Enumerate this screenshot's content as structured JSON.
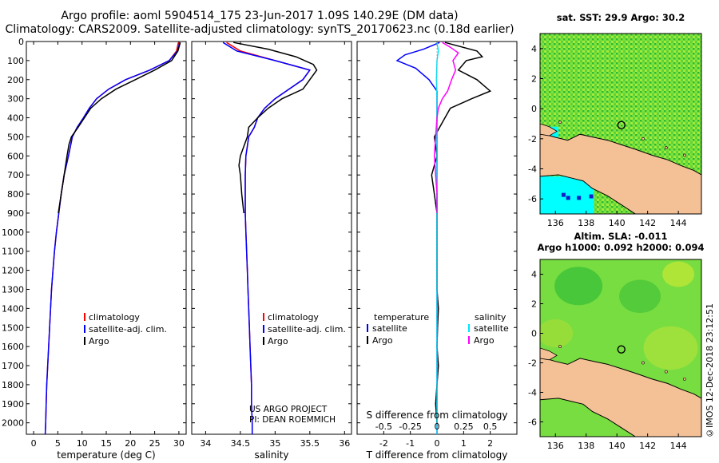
{
  "header": {
    "line1": "Argo profile: aoml 5904514_175 23-Jun-2017 1.09S 140.29E (DM data)",
    "line2": "Climatology: CARS2009. Satellite-adjusted climatology: synTS_20170623.nc (0.18d earlier)"
  },
  "colors": {
    "climatology": "#ff0000",
    "satellite": "#0000ff",
    "argo": "#000000",
    "sat_salinity": "#00e5ff",
    "argo_salinity": "#ff00ff",
    "land": "#f4c196",
    "sea_cold": "#00ffff"
  },
  "chart_data": [
    {
      "type": "line",
      "name": "temperature-profile",
      "xlabel": "temperature (deg C)",
      "xlim": [
        -1.5,
        31.5
      ],
      "xticks": [
        0,
        5,
        10,
        15,
        20,
        25,
        30
      ],
      "ylim": [
        0,
        2060
      ],
      "yticks": [
        0,
        100,
        200,
        300,
        400,
        500,
        600,
        700,
        800,
        900,
        1000,
        1100,
        1200,
        1300,
        1400,
        1500,
        1600,
        1700,
        1800,
        1900,
        2000
      ],
      "legend": [
        "climatology",
        "satellite-adj. clim.",
        "Argo"
      ],
      "series": [
        {
          "name": "climatology",
          "color": "#ff0000",
          "points": [
            [
              29.9,
              5
            ],
            [
              29.5,
              50
            ],
            [
              28,
              100
            ],
            [
              24,
              150
            ],
            [
              19,
              200
            ],
            [
              15.5,
              250
            ],
            [
              13,
              300
            ],
            [
              11.5,
              350
            ],
            [
              10.3,
              400
            ],
            [
              9,
              450
            ],
            [
              8,
              500
            ],
            [
              7.2,
              600
            ],
            [
              6.3,
              700
            ],
            [
              5.7,
              800
            ],
            [
              5.2,
              900
            ],
            [
              4.7,
              1000
            ],
            [
              4.3,
              1100
            ],
            [
              4,
              1200
            ],
            [
              3.7,
              1300
            ],
            [
              3.5,
              1400
            ],
            [
              3.3,
              1500
            ],
            [
              3.1,
              1600
            ],
            [
              2.9,
              1700
            ],
            [
              2.7,
              1800
            ],
            [
              2.6,
              1900
            ],
            [
              2.5,
              2000
            ],
            [
              2.4,
              2060
            ]
          ]
        },
        {
          "name": "satellite-adj. clim.",
          "color": "#0000ff",
          "points": [
            [
              30.2,
              5
            ],
            [
              29.7,
              50
            ],
            [
              28,
              100
            ],
            [
              24,
              150
            ],
            [
              19,
              200
            ],
            [
              15.5,
              250
            ],
            [
              13,
              300
            ],
            [
              11.5,
              350
            ],
            [
              10.3,
              400
            ],
            [
              9,
              450
            ],
            [
              8,
              500
            ],
            [
              7.2,
              600
            ],
            [
              6.3,
              700
            ],
            [
              5.7,
              800
            ],
            [
              5.2,
              900
            ],
            [
              4.7,
              1000
            ],
            [
              4.3,
              1100
            ],
            [
              4,
              1200
            ],
            [
              3.7,
              1300
            ],
            [
              3.5,
              1400
            ],
            [
              3.3,
              1500
            ],
            [
              3.1,
              1600
            ],
            [
              2.9,
              1700
            ],
            [
              2.7,
              1800
            ],
            [
              2.6,
              1900
            ],
            [
              2.5,
              2000
            ],
            [
              2.4,
              2060
            ]
          ]
        },
        {
          "name": "Argo",
          "color": "#000000",
          "points": [
            [
              30.3,
              5
            ],
            [
              29.8,
              50
            ],
            [
              28.5,
              100
            ],
            [
              25,
              150
            ],
            [
              21,
              200
            ],
            [
              17,
              250
            ],
            [
              14,
              300
            ],
            [
              11.8,
              350
            ],
            [
              10.5,
              400
            ],
            [
              9.2,
              450
            ],
            [
              7.8,
              500
            ],
            [
              7.3,
              540
            ],
            [
              6.9,
              600
            ],
            [
              6.3,
              700
            ],
            [
              5.7,
              800
            ],
            [
              5.1,
              900
            ]
          ]
        }
      ]
    },
    {
      "type": "line",
      "name": "salinity-profile",
      "xlabel": "salinity",
      "xlim": [
        33.8,
        36.1
      ],
      "xticks": [
        34,
        34.5,
        35,
        35.5,
        36
      ],
      "ylim": [
        0,
        2060
      ],
      "legend": [
        "climatology",
        "satellite-adj. clim.",
        "Argo"
      ],
      "annotation": [
        "US ARGO PROJECT",
        "PI: DEAN ROEMMICH"
      ],
      "series": [
        {
          "name": "climatology",
          "color": "#ff0000",
          "points": [
            [
              34.3,
              5
            ],
            [
              34.5,
              50
            ],
            [
              35,
              100
            ],
            [
              35.5,
              150
            ],
            [
              35.4,
              200
            ],
            [
              35.2,
              250
            ],
            [
              35.0,
              300
            ],
            [
              34.85,
              350
            ],
            [
              34.75,
              400
            ],
            [
              34.7,
              450
            ],
            [
              34.62,
              500
            ],
            [
              34.6,
              550
            ],
            [
              34.58,
              600
            ],
            [
              34.57,
              700
            ],
            [
              34.57,
              800
            ],
            [
              34.57,
              900
            ],
            [
              34.58,
              1000
            ],
            [
              34.59,
              1100
            ],
            [
              34.6,
              1200
            ],
            [
              34.61,
              1300
            ],
            [
              34.62,
              1400
            ],
            [
              34.63,
              1500
            ],
            [
              34.64,
              1600
            ],
            [
              34.65,
              1700
            ],
            [
              34.66,
              1800
            ],
            [
              34.66,
              1900
            ],
            [
              34.67,
              2000
            ],
            [
              34.67,
              2060
            ]
          ]
        },
        {
          "name": "satellite-adj. clim.",
          "color": "#0000ff",
          "points": [
            [
              34.25,
              5
            ],
            [
              34.45,
              50
            ],
            [
              35,
              100
            ],
            [
              35.5,
              150
            ],
            [
              35.4,
              200
            ],
            [
              35.2,
              250
            ],
            [
              35.0,
              300
            ],
            [
              34.85,
              350
            ],
            [
              34.75,
              400
            ],
            [
              34.7,
              450
            ],
            [
              34.62,
              500
            ],
            [
              34.6,
              550
            ],
            [
              34.58,
              600
            ],
            [
              34.57,
              700
            ],
            [
              34.57,
              800
            ],
            [
              34.57,
              900
            ],
            [
              34.58,
              1000
            ],
            [
              34.59,
              1100
            ],
            [
              34.6,
              1200
            ],
            [
              34.61,
              1300
            ],
            [
              34.62,
              1400
            ],
            [
              34.63,
              1500
            ],
            [
              34.64,
              1600
            ],
            [
              34.65,
              1700
            ],
            [
              34.66,
              1800
            ],
            [
              34.66,
              1900
            ],
            [
              34.67,
              2000
            ],
            [
              34.67,
              2060
            ]
          ]
        },
        {
          "name": "Argo",
          "color": "#000000",
          "points": [
            [
              34.4,
              5
            ],
            [
              34.9,
              40
            ],
            [
              35.3,
              80
            ],
            [
              35.55,
              120
            ],
            [
              35.6,
              150
            ],
            [
              35.5,
              200
            ],
            [
              35.4,
              250
            ],
            [
              35.1,
              300
            ],
            [
              34.9,
              350
            ],
            [
              34.75,
              400
            ],
            [
              34.62,
              450
            ],
            [
              34.6,
              500
            ],
            [
              34.5,
              600
            ],
            [
              34.48,
              650
            ],
            [
              34.5,
              700
            ],
            [
              34.52,
              800
            ],
            [
              34.55,
              900
            ]
          ]
        }
      ]
    },
    {
      "type": "line",
      "name": "difference-profile",
      "xlabel": "T difference from climatology",
      "xlabel2": "S difference from climatology",
      "xlim": [
        -3,
        3
      ],
      "xticks": [
        -2,
        -1,
        0,
        1,
        2
      ],
      "s_ticks": [
        -0.5,
        -0.25,
        0,
        0.25,
        0.5
      ],
      "ylim": [
        0,
        2060
      ],
      "legend": {
        "temperature": "temperature",
        "salinity": "salinity",
        "satellite": "satellite",
        "argo": "Argo"
      },
      "series": [
        {
          "name": "temperature satellite",
          "color": "#0000ff",
          "points": [
            [
              0.1,
              5
            ],
            [
              -0.5,
              40
            ],
            [
              -1.2,
              70
            ],
            [
              -1.5,
              100
            ],
            [
              -0.8,
              140
            ],
            [
              -0.3,
              200
            ],
            [
              0,
              260
            ],
            [
              0,
              400
            ],
            [
              0,
              2060
            ]
          ]
        },
        {
          "name": "temperature Argo",
          "color": "#000000",
          "points": [
            [
              0.3,
              5
            ],
            [
              1.5,
              50
            ],
            [
              1.7,
              80
            ],
            [
              1.1,
              100
            ],
            [
              0.8,
              150
            ],
            [
              1.5,
              200
            ],
            [
              2.0,
              260
            ],
            [
              1.3,
              300
            ],
            [
              0.5,
              350
            ],
            [
              0.3,
              400
            ],
            [
              0.1,
              450
            ],
            [
              -0.1,
              500
            ],
            [
              0,
              600
            ],
            [
              -0.2,
              700
            ],
            [
              -0.1,
              800
            ],
            [
              0,
              900
            ],
            [
              0,
              1000
            ],
            [
              0,
              1300
            ],
            [
              0.05,
              1400
            ],
            [
              0.02,
              1500
            ],
            [
              0,
              1600
            ],
            [
              0.05,
              1700
            ],
            [
              0,
              1800
            ],
            [
              -0.05,
              1900
            ],
            [
              0,
              2000
            ]
          ]
        },
        {
          "name": "salinity satellite",
          "color": "#00e5ff",
          "points": [
            [
              0,
              5
            ],
            [
              0.05,
              50
            ],
            [
              0,
              100
            ],
            [
              -0.02,
              200
            ],
            [
              0,
              300
            ],
            [
              0,
              2060
            ]
          ]
        },
        {
          "name": "salinity Argo",
          "color": "#ff00ff",
          "points": [
            [
              0.2,
              5
            ],
            [
              0.5,
              30
            ],
            [
              0.8,
              60
            ],
            [
              0.6,
              100
            ],
            [
              0.7,
              150
            ],
            [
              0.55,
              200
            ],
            [
              0.4,
              260
            ],
            [
              0.2,
              300
            ],
            [
              0.05,
              350
            ],
            [
              0,
              400
            ],
            [
              -0.05,
              500
            ],
            [
              -0.1,
              600
            ],
            [
              -0.05,
              700
            ],
            [
              0,
              800
            ],
            [
              0,
              900
            ]
          ]
        }
      ]
    }
  ],
  "maps": {
    "top": {
      "title": "sat. SST: 29.9 Argo: 30.2",
      "xticks": [
        136,
        138,
        140,
        142,
        144
      ],
      "yticks": [
        4,
        2,
        0,
        -2,
        -4,
        -6
      ],
      "xlim": [
        135,
        145.5
      ],
      "ylim": [
        -7,
        5
      ],
      "argo_position": {
        "lon": 140.29,
        "lat": -1.09
      }
    },
    "bottom": {
      "title1": "Altim. SLA: -0.011",
      "title2": "Argo h1000: 0.092 h2000: 0.094",
      "xticks": [
        136,
        138,
        140,
        142,
        144
      ],
      "yticks": [
        4,
        2,
        0,
        -2,
        -4,
        -6
      ],
      "xlim": [
        135,
        145.5
      ],
      "ylim": [
        -7,
        5
      ],
      "argo_position": {
        "lon": 140.29,
        "lat": -1.09
      }
    }
  },
  "footer": {
    "credit": "©IMOS 12-Dec-2018 23:12:51"
  }
}
